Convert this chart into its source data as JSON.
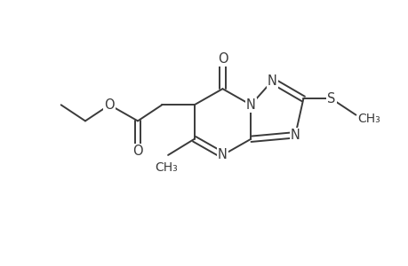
{
  "bg_color": "#ffffff",
  "line_color": "#3a3a3a",
  "line_width": 1.4,
  "font_size": 10.5,
  "figsize": [
    4.6,
    3.0
  ],
  "dpi": 100,
  "xlim": [
    0,
    10
  ],
  "ylim": [
    0,
    6.5
  ]
}
